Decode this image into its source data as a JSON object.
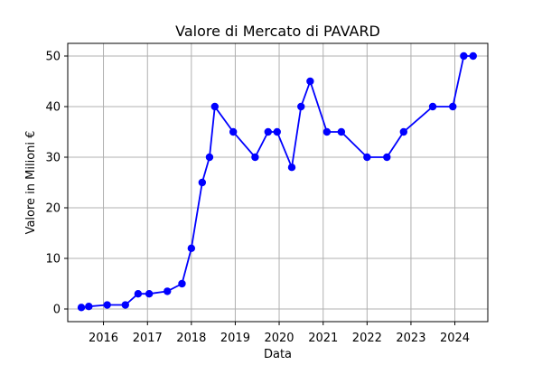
{
  "chart_data": {
    "type": "line",
    "title": "Valore di Mercato di PAVARD",
    "xlabel": "Data",
    "ylabel": "Valore in Milioni €",
    "grid": true,
    "line_color": "#0000ff",
    "marker": "circle",
    "xlim": [
      "2015-03-10",
      "2024-10-01"
    ],
    "ylim": [
      -2.5,
      52.5
    ],
    "x_ticks": [
      {
        "value": "2016-01-01",
        "label": "2016"
      },
      {
        "value": "2017-01-01",
        "label": "2017"
      },
      {
        "value": "2018-01-01",
        "label": "2018"
      },
      {
        "value": "2019-01-01",
        "label": "2019"
      },
      {
        "value": "2020-01-01",
        "label": "2020"
      },
      {
        "value": "2021-01-01",
        "label": "2021"
      },
      {
        "value": "2022-01-01",
        "label": "2022"
      },
      {
        "value": "2023-01-01",
        "label": "2023"
      },
      {
        "value": "2024-01-01",
        "label": "2024"
      }
    ],
    "y_ticks": [
      0,
      10,
      20,
      30,
      40,
      50
    ],
    "series": [
      {
        "points": [
          {
            "x": "2015-07-01",
            "y": 0.3
          },
          {
            "x": "2015-09-01",
            "y": 0.5
          },
          {
            "x": "2016-02-01",
            "y": 0.8
          },
          {
            "x": "2016-07-01",
            "y": 0.8
          },
          {
            "x": "2016-10-15",
            "y": 3
          },
          {
            "x": "2017-01-15",
            "y": 3
          },
          {
            "x": "2017-06-15",
            "y": 3.5
          },
          {
            "x": "2017-10-15",
            "y": 5
          },
          {
            "x": "2018-01-01",
            "y": 12
          },
          {
            "x": "2018-04-01",
            "y": 25
          },
          {
            "x": "2018-06-01",
            "y": 30
          },
          {
            "x": "2018-07-15",
            "y": 40
          },
          {
            "x": "2018-12-15",
            "y": 35
          },
          {
            "x": "2019-06-15",
            "y": 30
          },
          {
            "x": "2019-10-01",
            "y": 35
          },
          {
            "x": "2019-12-15",
            "y": 35
          },
          {
            "x": "2020-04-15",
            "y": 28
          },
          {
            "x": "2020-07-01",
            "y": 40
          },
          {
            "x": "2020-09-15",
            "y": 45
          },
          {
            "x": "2021-02-01",
            "y": 35
          },
          {
            "x": "2021-06-01",
            "y": 35
          },
          {
            "x": "2022-01-01",
            "y": 30
          },
          {
            "x": "2022-06-15",
            "y": 30
          },
          {
            "x": "2022-11-01",
            "y": 35
          },
          {
            "x": "2023-07-01",
            "y": 40
          },
          {
            "x": "2023-12-15",
            "y": 40
          },
          {
            "x": "2024-03-15",
            "y": 50
          },
          {
            "x": "2024-06-01",
            "y": 50
          }
        ]
      }
    ]
  }
}
